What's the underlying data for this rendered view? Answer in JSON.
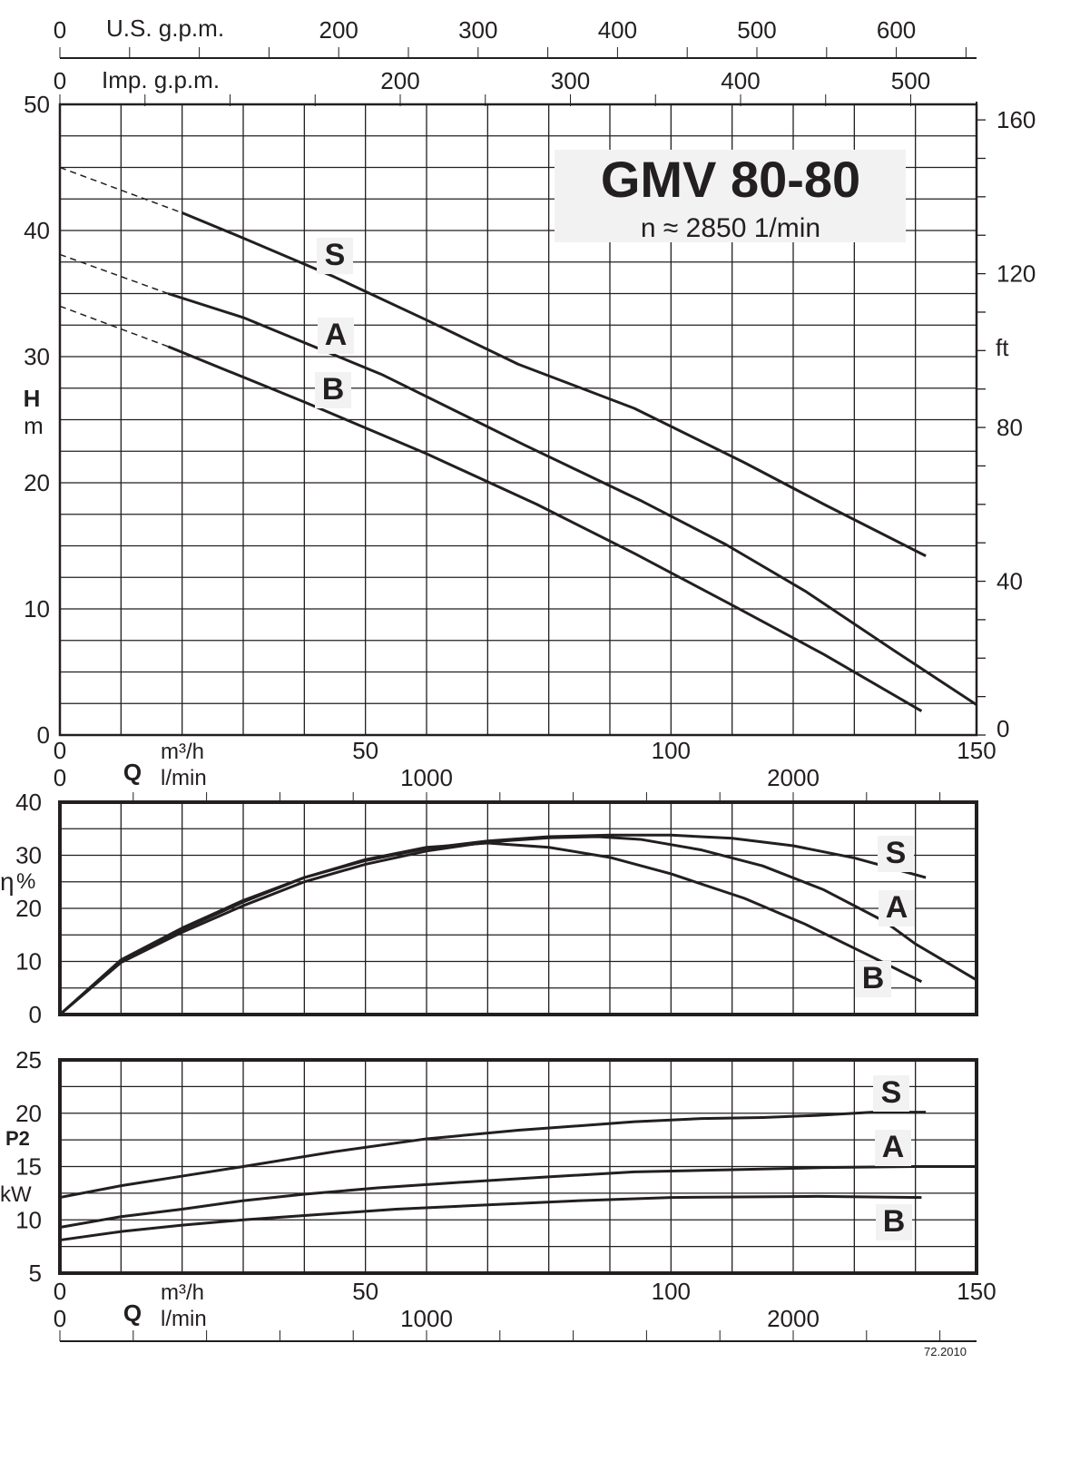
{
  "chart_data": [
    {
      "type": "line",
      "title": "GMV 80-80",
      "subtitle": "n ≈ 2850 1/min",
      "xlabel": "Q",
      "xunit": "m³/h",
      "xunit2": "l/min",
      "ylabel": "H",
      "yunit": "m",
      "y2unit": "ft",
      "xlim": [
        0,
        150
      ],
      "ylim": [
        0,
        50
      ],
      "y2lim_ft": [
        0,
        164
      ],
      "x_ticks": [
        0,
        50,
        100,
        150
      ],
      "x2_ticks": [
        0,
        1000,
        2000
      ],
      "y_ticks": [
        0,
        10,
        20,
        30,
        40,
        50
      ],
      "y2_ticks": [
        0,
        40,
        80,
        120,
        160
      ],
      "top_axes": [
        {
          "label": "U.S. g.p.m.",
          "ticks": [
            0,
            200,
            300,
            400,
            500,
            600
          ]
        },
        {
          "label": "Imp. g.p.m.",
          "ticks": [
            0,
            200,
            300,
            400,
            500
          ]
        }
      ],
      "grid": true,
      "series": [
        {
          "name": "S",
          "dashed": [
            [
              0,
              45
            ],
            [
              20,
              41.4
            ]
          ],
          "x": [
            20,
            30,
            45,
            60,
            75,
            94,
            112,
            125,
            141.7
          ],
          "y": [
            41.4,
            39.4,
            36.3,
            32.9,
            29.4,
            25.9,
            21.6,
            18.3,
            14.2
          ]
        },
        {
          "name": "A",
          "dashed": [
            [
              0,
              38.1
            ],
            [
              17.7,
              35
            ]
          ],
          "x": [
            17.7,
            30,
            52.6,
            76,
            95,
            109,
            122,
            136.5,
            150
          ],
          "y": [
            35,
            33.1,
            28.6,
            23,
            18.6,
            15.1,
            11.4,
            6.7,
            2.4
          ]
        },
        {
          "name": "B",
          "dashed": [
            [
              0,
              34
            ],
            [
              17.7,
              30.8
            ]
          ],
          "x": [
            17.7,
            40,
            60,
            78,
            94,
            110,
            125,
            141
          ],
          "y": [
            30.8,
            26.4,
            22.3,
            18.3,
            14.4,
            10.3,
            6.4,
            1.9
          ]
        }
      ]
    },
    {
      "type": "line",
      "ylabel": "η",
      "yunit": "%",
      "xlim": [
        0,
        150
      ],
      "ylim": [
        0,
        40
      ],
      "y_ticks": [
        0,
        10,
        20,
        30,
        40
      ],
      "grid": true,
      "series": [
        {
          "name": "S",
          "x": [
            0,
            10,
            20,
            30,
            40,
            50,
            60,
            70,
            80,
            90,
            100,
            110,
            120,
            130,
            141.7
          ],
          "y": [
            0,
            10.3,
            16.3,
            21.5,
            25.8,
            29,
            31.3,
            32.7,
            33.5,
            33.8,
            33.8,
            33.2,
            31.8,
            29.5,
            25.8
          ]
        },
        {
          "name": "A",
          "x": [
            0,
            10,
            20,
            30,
            40,
            50,
            60,
            70,
            80,
            88,
            95,
            105,
            115,
            125,
            135,
            140,
            150
          ],
          "y": [
            0,
            9.8,
            15.5,
            20.5,
            25,
            28.3,
            30.8,
            32.5,
            33.3,
            33.5,
            33,
            31,
            28,
            23.5,
            17.5,
            13.3,
            6.5
          ]
        },
        {
          "name": "B",
          "x": [
            0,
            10,
            20,
            30,
            40,
            50,
            60,
            70,
            80,
            90,
            100,
            112,
            122,
            133,
            141
          ],
          "y": [
            0,
            10,
            16,
            21.2,
            25.8,
            29.2,
            31.5,
            32.3,
            31.5,
            29.6,
            26.5,
            21.9,
            17,
            10.8,
            6.2
          ]
        }
      ]
    },
    {
      "type": "line",
      "ylabel": "P2",
      "yunit": "kW",
      "xlabel": "Q",
      "xunit": "m³/h",
      "xunit2": "l/min",
      "xlim": [
        0,
        150
      ],
      "ylim": [
        5,
        25
      ],
      "x_ticks": [
        0,
        50,
        100,
        150
      ],
      "x2_ticks": [
        0,
        1000,
        2000
      ],
      "y_ticks": [
        5,
        10,
        15,
        20,
        25
      ],
      "grid": true,
      "series": [
        {
          "name": "S",
          "x": [
            0,
            10,
            20,
            30,
            45,
            60,
            75,
            94,
            105,
            115,
            124,
            133,
            141.7
          ],
          "y": [
            12.1,
            13.2,
            14.1,
            15,
            16.4,
            17.6,
            18.4,
            19.2,
            19.5,
            19.6,
            19.8,
            20.1,
            20.1
          ]
        },
        {
          "name": "A",
          "x": [
            0,
            10,
            20,
            30,
            40,
            52,
            65,
            79,
            94,
            110,
            125,
            140,
            150
          ],
          "y": [
            9.3,
            10.3,
            11,
            11.8,
            12.4,
            13,
            13.5,
            14,
            14.5,
            14.7,
            14.9,
            15,
            15
          ]
        },
        {
          "name": "B",
          "x": [
            0,
            10,
            20,
            30,
            40,
            55,
            70,
            85,
            100,
            124,
            141
          ],
          "y": [
            8.1,
            8.9,
            9.5,
            10,
            10.4,
            11,
            11.4,
            11.8,
            12.1,
            12.2,
            12.1
          ]
        }
      ]
    }
  ],
  "footer": {
    "code": "72.2010"
  }
}
